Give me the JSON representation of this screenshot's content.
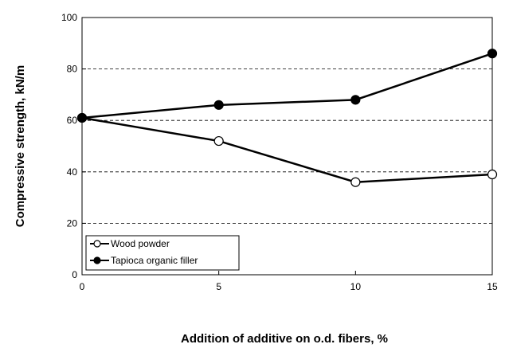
{
  "chart_data": {
    "type": "line",
    "xlabel": "Addition  of additive  on o.d. fibers,  %",
    "ylabel": "Compressive  strength, kN/m",
    "xlim": [
      0,
      15
    ],
    "ylim": [
      0,
      100
    ],
    "x_ticks": [
      0,
      5,
      10,
      15
    ],
    "y_ticks": [
      0,
      20,
      40,
      60,
      80,
      100
    ],
    "grid": "horizontal dashed",
    "legend_position": "bottom-left",
    "x": [
      0,
      5,
      10,
      15
    ],
    "series": [
      {
        "name": "Wood powder",
        "values": [
          61,
          52,
          36,
          39
        ],
        "marker": "open-circle",
        "color": "#000000"
      },
      {
        "name": "Tapioca organic filler",
        "values": [
          61,
          66,
          68,
          86
        ],
        "marker": "filled-circle",
        "color": "#000000"
      }
    ]
  }
}
